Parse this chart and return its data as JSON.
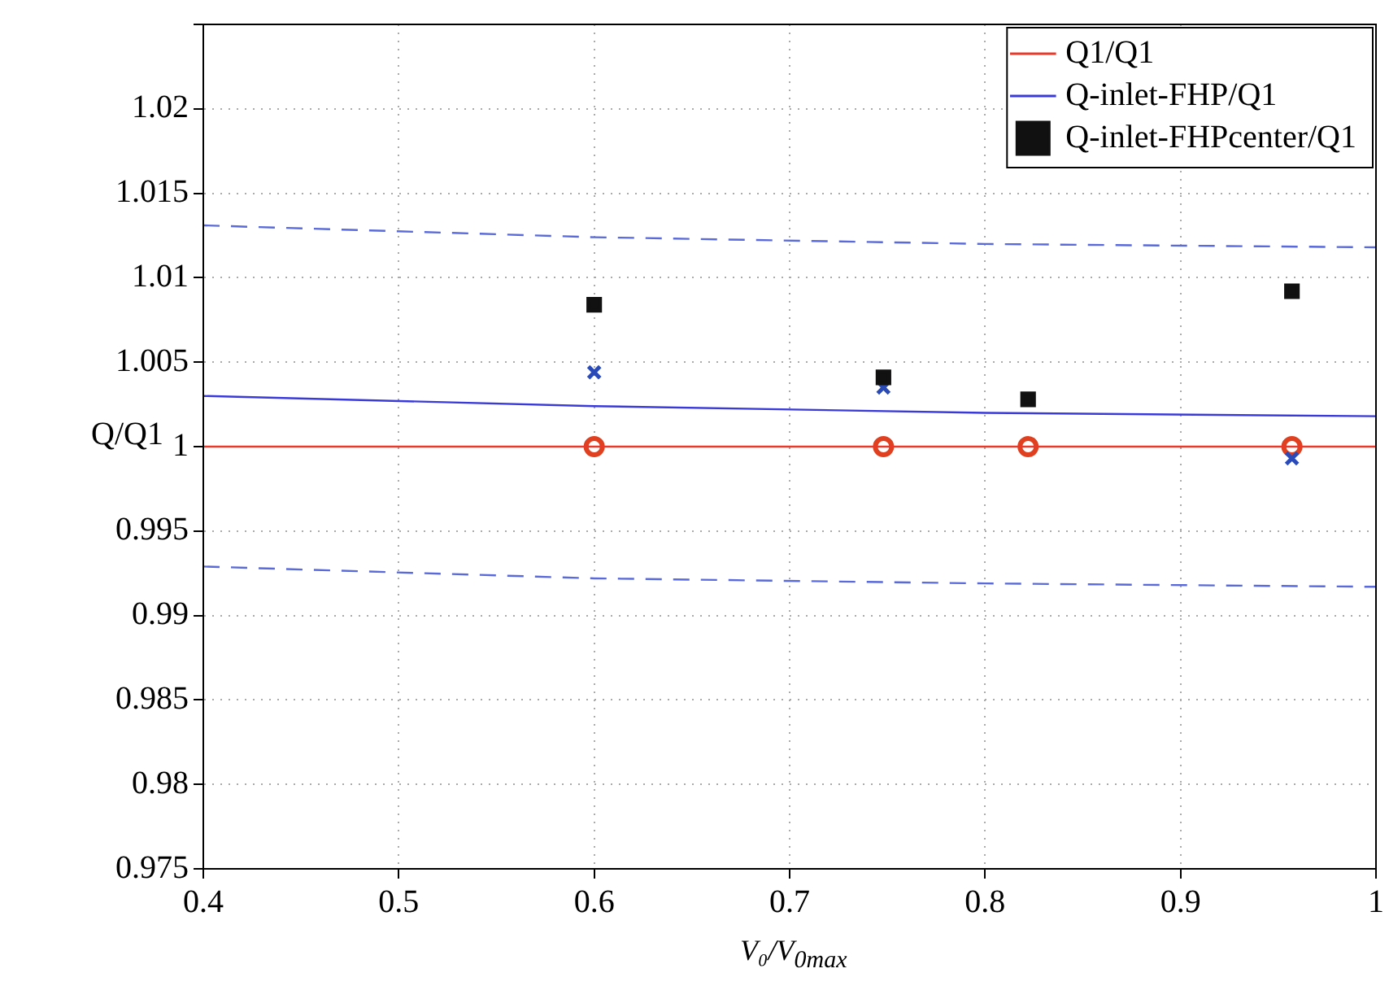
{
  "chart_data": {
    "type": "line",
    "xlabel": "V₀/V$_{0max}$",
    "ylabel": "Q/Q1",
    "xlim": [
      0.4,
      1
    ],
    "xticks": [
      0.4,
      0.5,
      0.6,
      0.7,
      0.8,
      0.9,
      1
    ],
    "ylim": [
      0.975,
      1.025
    ],
    "yticks": [
      0.975,
      0.98,
      0.985,
      0.99,
      0.995,
      1,
      1.005,
      1.01,
      1.015,
      1.02,
      {
        "value": 1.025,
        "label": null
      }
    ],
    "grid": true,
    "legend": "top right",
    "series": [
      {
        "name": "Q1/Q1",
        "type": "line",
        "color": "#e8392a",
        "marker": "none",
        "line_style": "solid",
        "x": [
          0.4,
          1
        ],
        "values": [
          1,
          1
        ]
      },
      {
        "name": "Q-inlet-FHP/Q1",
        "type": "line",
        "color": "#3a3ad8",
        "marker": "none",
        "line_style": "solid",
        "x": [
          0.4,
          0.6,
          0.8,
          1
        ],
        "values": [
          1.003,
          1.0024,
          1.002,
          1.0018
        ]
      },
      {
        "name": "Q-inlet-FHPcenter/Q1",
        "type": "scatter",
        "color": "#111111",
        "marker": "square",
        "x": [
          0.6,
          0.748,
          0.822,
          0.957
        ],
        "values": [
          1.0084,
          1.0041,
          1.0028,
          1.0092
        ]
      },
      {
        "type": "line",
        "color": "#5a6ad8",
        "marker": "none",
        "line_style": "dashed",
        "x": [
          0.4,
          0.6,
          0.8,
          1
        ],
        "values": [
          1.0131,
          1.0124,
          1.012,
          1.0118
        ]
      },
      {
        "type": "line",
        "color": "#5a6ad8",
        "marker": "none",
        "line_style": "dashed",
        "x": [
          0.4,
          0.6,
          0.8,
          1
        ],
        "values": [
          0.9929,
          0.9922,
          0.9919,
          0.9917
        ]
      },
      {
        "type": "scatter",
        "color": "#2a4ab8",
        "marker": "cross",
        "x": [
          0.6,
          0.748,
          0.957
        ],
        "values": [
          1.0044,
          1.0035,
          0.9993
        ]
      },
      {
        "type": "scatter",
        "color": "#e04020",
        "marker": "circle",
        "x": [
          0.6,
          0.748,
          0.822,
          0.957
        ],
        "values": [
          1,
          1,
          1,
          1
        ]
      }
    ]
  }
}
